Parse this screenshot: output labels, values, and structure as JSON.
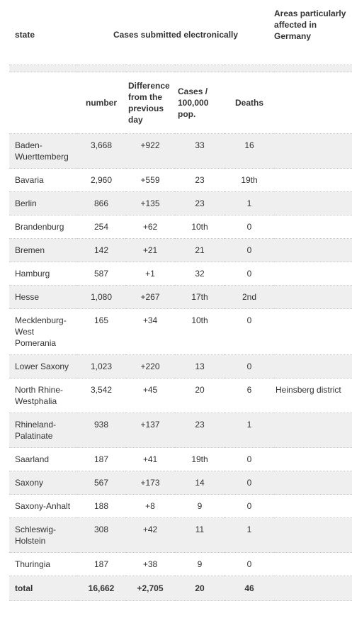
{
  "header": {
    "state": "state",
    "cases_electronic": "Cases submitted electronically",
    "areas": "Areas particularly affected in Germany"
  },
  "subheader": {
    "number": "number",
    "difference": "Difference from the previous day",
    "rate": "Cases / 100,000 pop.",
    "deaths": "Deaths"
  },
  "rows": [
    {
      "state": "Baden-Wuerttemberg",
      "number": "3,668",
      "difference": "+922",
      "rate": "33",
      "deaths": "16",
      "area": ""
    },
    {
      "state": "Bavaria",
      "number": "2,960",
      "difference": "+559",
      "rate": "23",
      "deaths": "19th",
      "area": ""
    },
    {
      "state": "Berlin",
      "number": "866",
      "difference": "+135",
      "rate": "23",
      "deaths": "1",
      "area": ""
    },
    {
      "state": "Brandenburg",
      "number": "254",
      "difference": "+62",
      "rate": "10th",
      "deaths": "0",
      "area": ""
    },
    {
      "state": "Bremen",
      "number": "142",
      "difference": "+21",
      "rate": "21",
      "deaths": "0",
      "area": ""
    },
    {
      "state": "Hamburg",
      "number": "587",
      "difference": "+1",
      "rate": "32",
      "deaths": "0",
      "area": ""
    },
    {
      "state": "Hesse",
      "number": "1,080",
      "difference": "+267",
      "rate": "17th",
      "deaths": "2nd",
      "area": ""
    },
    {
      "state": "Mecklenburg-West Pomerania",
      "number": "165",
      "difference": "+34",
      "rate": "10th",
      "deaths": "0",
      "area": ""
    },
    {
      "state": "Lower Saxony",
      "number": "1,023",
      "difference": "+220",
      "rate": "13",
      "deaths": "0",
      "area": ""
    },
    {
      "state": "North Rhine-Westphalia",
      "number": "3,542",
      "difference": "+45",
      "rate": "20",
      "deaths": "6",
      "area": "Heinsberg district"
    },
    {
      "state": "Rhineland-Palatinate",
      "number": "938",
      "difference": "+137",
      "rate": "23",
      "deaths": "1",
      "area": ""
    },
    {
      "state": "Saarland",
      "number": "187",
      "difference": "+41",
      "rate": "19th",
      "deaths": "0",
      "area": ""
    },
    {
      "state": "Saxony",
      "number": "567",
      "difference": "+173",
      "rate": "14",
      "deaths": "0",
      "area": ""
    },
    {
      "state": "Saxony-Anhalt",
      "number": "188",
      "difference": "+8",
      "rate": "9",
      "deaths": "0",
      "area": ""
    },
    {
      "state": "Schleswig-Holstein",
      "number": "308",
      "difference": "+42",
      "rate": "11",
      "deaths": "1",
      "area": ""
    },
    {
      "state": "Thuringia",
      "number": "187",
      "difference": "+38",
      "rate": "9",
      "deaths": "0",
      "area": ""
    }
  ],
  "total": {
    "label": "total",
    "number": "16,662",
    "difference": "+2,705",
    "rate": "20",
    "deaths": "46"
  }
}
